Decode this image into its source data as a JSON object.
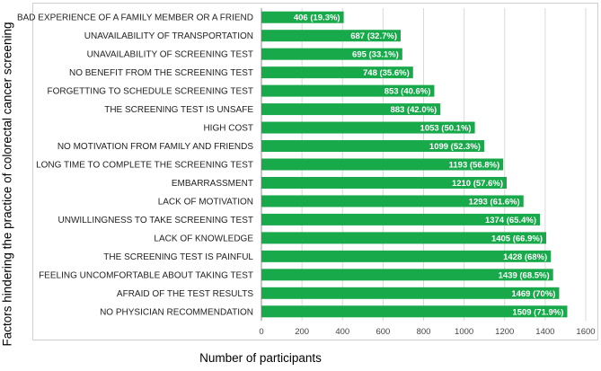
{
  "chart_data": {
    "type": "bar",
    "orientation": "horizontal",
    "title": "",
    "xlabel": "Number of participants",
    "ylabel": "Factors hindering the practice of colorectal cancer screening",
    "xlim": [
      0,
      1600
    ],
    "xticks": [
      0,
      200,
      400,
      600,
      800,
      1000,
      1200,
      1400,
      1600
    ],
    "grid": "vertical",
    "bar_color": "#18a94a",
    "categories": [
      "BAD EXPERIENCE OF A FAMILY MEMBER OR A FRIEND",
      "UNAVAILABILITY OF TRANSPORTATION",
      "UNAVAILABILITY OF SCREENING TEST",
      "NO BENEFIT FROM THE SCREENING TEST",
      "FORGETTING TO SCHEDULE SCREENING TEST",
      "THE SCREENING TEST IS UNSAFE",
      "HIGH COST",
      "NO MOTIVATION FROM FAMILY AND FRIENDS",
      "LONG TIME TO COMPLETE THE SCREENING TEST",
      "EMBARRASSMENT",
      "LACK OF MOTIVATION",
      "UNWILLINGNESS TO TAKE SCREENING TEST",
      "LACK OF KNOWLEDGE",
      "THE SCREENING TEST IS PAINFUL",
      "FEELING UNCOMFORTABLE ABOUT TAKING TEST",
      "AFRAID OF THE TEST RESULTS",
      "NO PHYSICIAN RECOMMENDATION"
    ],
    "values": [
      406,
      687,
      695,
      748,
      853,
      883,
      1053,
      1099,
      1193,
      1210,
      1293,
      1374,
      1405,
      1428,
      1439,
      1469,
      1509
    ],
    "data_labels": [
      "406 (19.3%)",
      "687 (32.7%)",
      "695 (33.1%)",
      "748 (35.6%)",
      "853 (40.6%)",
      "883 (42.0%)",
      "1053 (50.1%)",
      "1099 (52.3%)",
      "1193 (56.8%)",
      "1210 (57.6%)",
      "1293 (61.6%)",
      "1374 (65.4%)",
      "1405 (66.9%)",
      "1428 (68%)",
      "1439 (68.5%)",
      "1469 (70%)",
      "1509 (71.9%)"
    ]
  }
}
